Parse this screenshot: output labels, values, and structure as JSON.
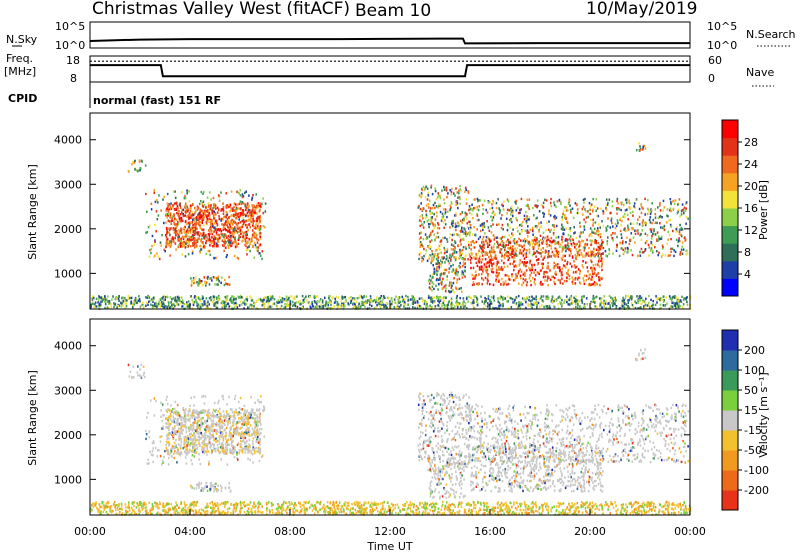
{
  "header": {
    "title": "Christmas Valley West (fitACF)",
    "beam": "Beam 10",
    "date": "10/May/2019"
  },
  "panels": {
    "nsky_label": "N.Sky",
    "nsky_ticks": [
      "10^5",
      "10^0"
    ],
    "nsearch_label": "N.Search",
    "nsearch_ticks": [
      "10^5",
      "10^0"
    ],
    "freq_label": "Freq.",
    "freq_unit": "[MHz]",
    "freq_ticks": [
      "18",
      "8"
    ],
    "nave_label": "Nave",
    "nave_ticks": [
      "60",
      "0"
    ],
    "cpid_label": "CPID",
    "cpid_value": "normal (fast) 151 RF"
  },
  "chart_data": [
    {
      "type": "line",
      "name": "nsky-nsearch",
      "x": [
        "00:00",
        "02:00",
        "04:00",
        "06:00",
        "08:00",
        "10:00",
        "12:00",
        "14:00",
        "14:55",
        "15:00",
        "18:00",
        "20:00",
        "22:00",
        "24:00"
      ],
      "y": [
        0.35,
        0.45,
        0.48,
        0.48,
        0.48,
        0.48,
        0.5,
        0.52,
        0.52,
        0.18,
        0.2,
        0.2,
        0.2,
        0.2
      ]
    },
    {
      "type": "line",
      "name": "frequency",
      "x": [
        "00:00",
        "02:50",
        "02:55",
        "15:00",
        "15:05",
        "24:00"
      ],
      "y": [
        14.5,
        14.5,
        10.2,
        10.2,
        14.5,
        14.5
      ],
      "nave_dotted": 48
    },
    {
      "type": "heatmap",
      "name": "power",
      "xlabel": "",
      "ylabel": "Slant Range [km]",
      "y_ticks": [
        "1000",
        "2000",
        "3000",
        "4000"
      ],
      "ylim": [
        200,
        4600
      ],
      "colorbar_label": "Power [dB]",
      "colorbar_ticks": [
        "4",
        "8",
        "12",
        "16",
        "20",
        "24",
        "28"
      ],
      "colorbar_colors": [
        "#0000ff",
        "#1f3fa8",
        "#2f6f5a",
        "#3e9c55",
        "#8bd048",
        "#f2e23a",
        "#f6a323",
        "#ef6a1e",
        "#e23218",
        "#ff0000"
      ]
    },
    {
      "type": "heatmap",
      "name": "velocity",
      "xlabel": "Time UT",
      "ylabel": "Slant Range [km]",
      "x_ticks": [
        "00:00",
        "04:00",
        "08:00",
        "12:00",
        "16:00",
        "20:00",
        "00:00"
      ],
      "y_ticks": [
        "1000",
        "2000",
        "3000",
        "4000"
      ],
      "ylim": [
        200,
        4600
      ],
      "colorbar_label": "Velocity [m s⁻¹]",
      "colorbar_ticks": [
        "200",
        "100",
        "50",
        "15",
        "-15",
        "-50",
        "-100",
        "-200"
      ],
      "colorbar_colors": [
        "#1f2fb0",
        "#2e6a9e",
        "#3a9a5a",
        "#7bcf3d",
        "#c8c8c8",
        "#f4c12e",
        "#f29a20",
        "#ec6a1a",
        "#e8331a"
      ]
    }
  ]
}
